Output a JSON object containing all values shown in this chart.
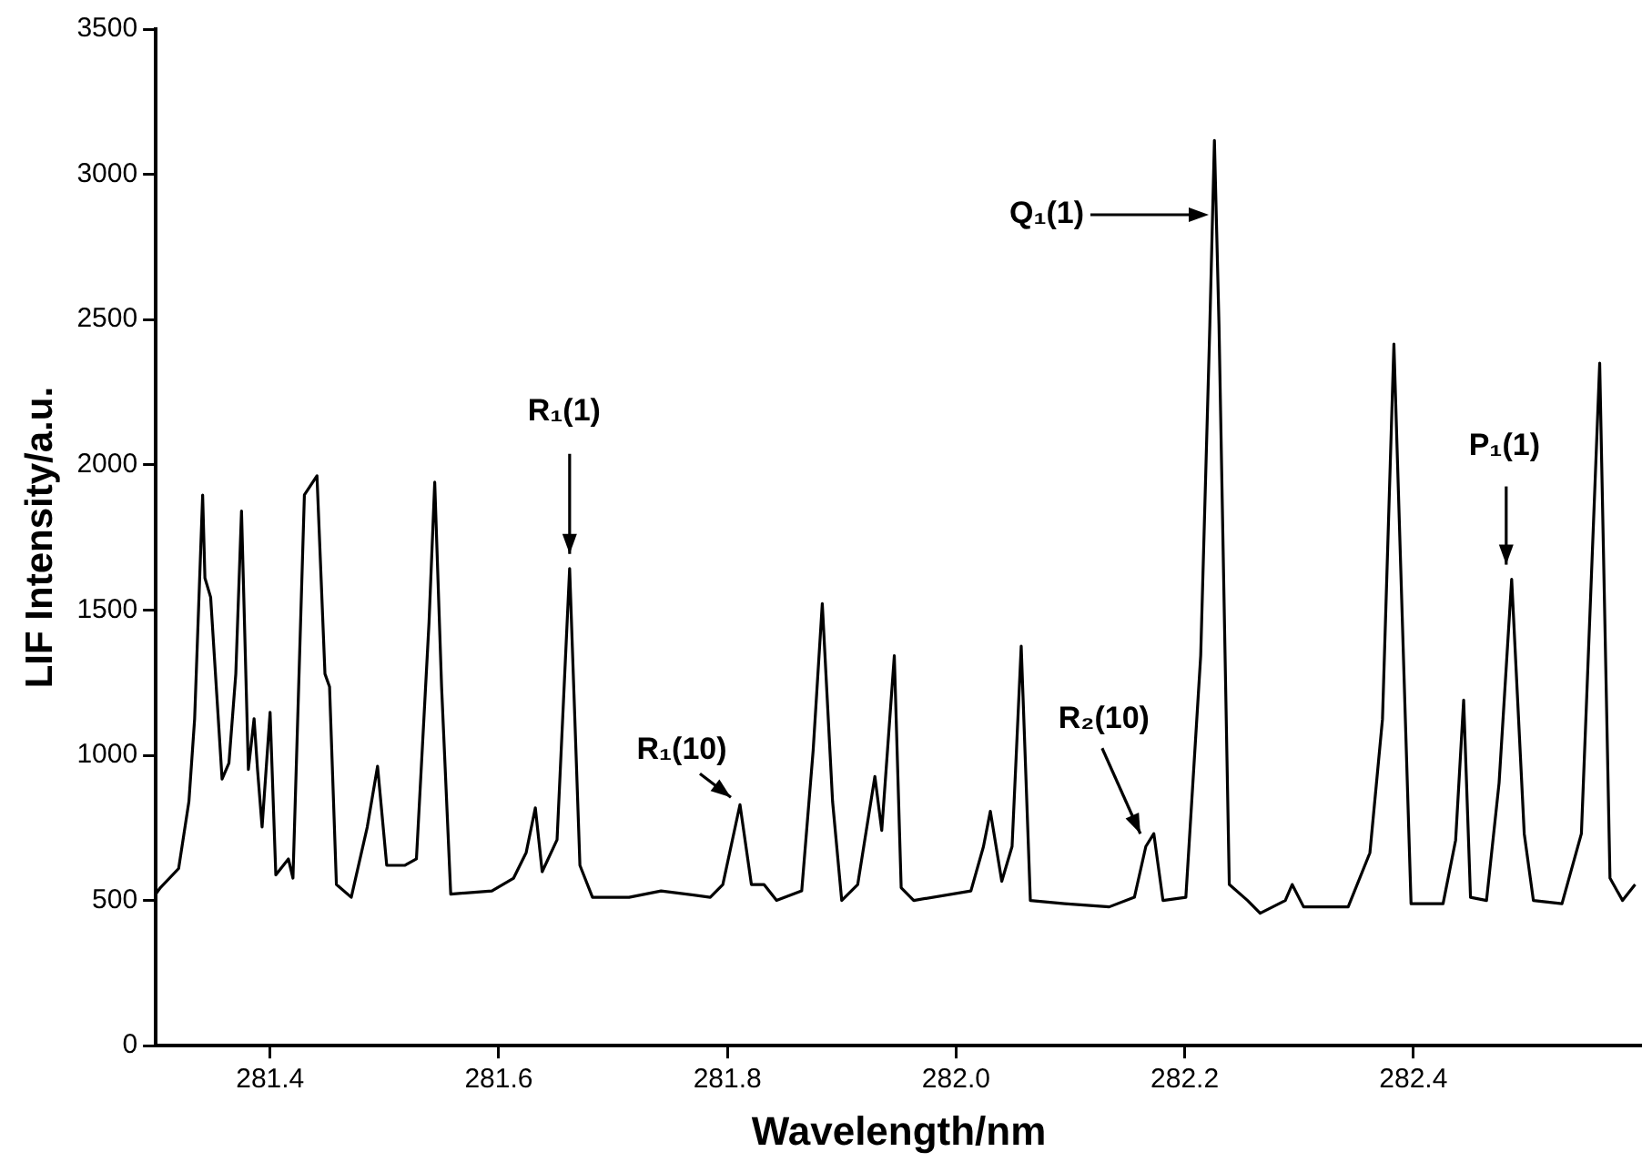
{
  "chart_data": {
    "type": "line",
    "xlabel": "Wavelength/nm",
    "ylabel": "LIF Intensity/a.u.",
    "xlim": [
      281.3,
      282.6
    ],
    "xticks": [
      281.4,
      281.6,
      281.8,
      {
        "value": 282.0,
        "label": "282.0"
      },
      282.2,
      282.4
    ],
    "ylim": [
      0,
      3500
    ],
    "yticks": [
      0,
      500,
      1000,
      1500,
      2000,
      2500,
      3000,
      3500
    ],
    "grid": false,
    "legend": false,
    "marker": "none",
    "line_style": "solid",
    "series": [
      {
        "color": "#000000",
        "x": [
          281.3,
          281.304,
          281.32,
          281.329,
          281.334,
          281.341,
          281.343,
          281.348,
          281.358,
          281.364,
          281.37,
          281.375,
          281.381,
          281.386,
          281.389,
          281.393,
          281.4,
          281.405,
          281.416,
          281.42,
          281.43,
          281.441,
          281.448,
          281.452,
          281.458,
          281.471,
          281.485,
          281.494,
          281.502,
          281.518,
          281.528,
          281.539,
          281.544,
          281.55,
          281.558,
          281.594,
          281.613,
          281.624,
          281.632,
          281.638,
          281.651,
          281.662,
          281.671,
          281.682,
          281.714,
          281.742,
          281.785,
          281.796,
          281.811,
          281.821,
          281.832,
          281.843,
          281.865,
          281.875,
          281.883,
          281.892,
          281.9,
          281.914,
          281.929,
          281.935,
          281.946,
          281.952,
          281.963,
          282.013,
          282.024,
          282.03,
          282.04,
          282.049,
          282.057,
          282.065,
          282.095,
          282.134,
          282.156,
          282.166,
          282.173,
          282.181,
          282.201,
          282.214,
          282.222,
          282.226,
          282.23,
          282.239,
          282.255,
          282.266,
          282.288,
          282.294,
          282.304,
          282.343,
          282.362,
          282.373,
          282.383,
          282.393,
          282.398,
          282.426,
          282.437,
          282.444,
          282.45,
          282.464,
          282.475,
          282.486,
          282.497,
          282.505,
          282.53,
          282.547,
          282.563,
          282.572,
          282.583,
          282.594
        ],
        "values": [
          522,
          544,
          610,
          841,
          1126,
          1896,
          1610,
          1544,
          918,
          973,
          1280,
          1841,
          951,
          1126,
          951,
          753,
          1148,
          588,
          643,
          577,
          1896,
          1962,
          1280,
          1236,
          555,
          511,
          753,
          962,
          621,
          621,
          643,
          1456,
          1940,
          1236,
          522,
          533,
          577,
          665,
          819,
          599,
          709,
          1643,
          621,
          511,
          511,
          533,
          511,
          555,
          830,
          555,
          555,
          500,
          533,
          1016,
          1522,
          841,
          500,
          555,
          927,
          741,
          1343,
          544,
          500,
          533,
          686,
          807,
          566,
          686,
          1376,
          500,
          489,
          478,
          511,
          686,
          730,
          500,
          511,
          1343,
          2482,
          3117,
          2482,
          555,
          500,
          456,
          500,
          555,
          478,
          478,
          664,
          1124,
          2416,
          1124,
          489,
          489,
          708,
          1190,
          511,
          500,
          905,
          1606,
          730,
          500,
          489,
          730,
          2350,
          577,
          500,
          555
        ]
      }
    ],
    "annotations": [
      {
        "text": "R₁(1)",
        "x": 281.662,
        "y": 1643
      },
      {
        "text": "R₁(10)",
        "x": 281.811,
        "y": 830
      },
      "Q₁(1)",
      {
        "text": "R₂(10)",
        "x": 282.166,
        "y": 686
      },
      {
        "text": "P₁(1)",
        "x": 282.486,
        "y": 1606
      }
    ]
  }
}
